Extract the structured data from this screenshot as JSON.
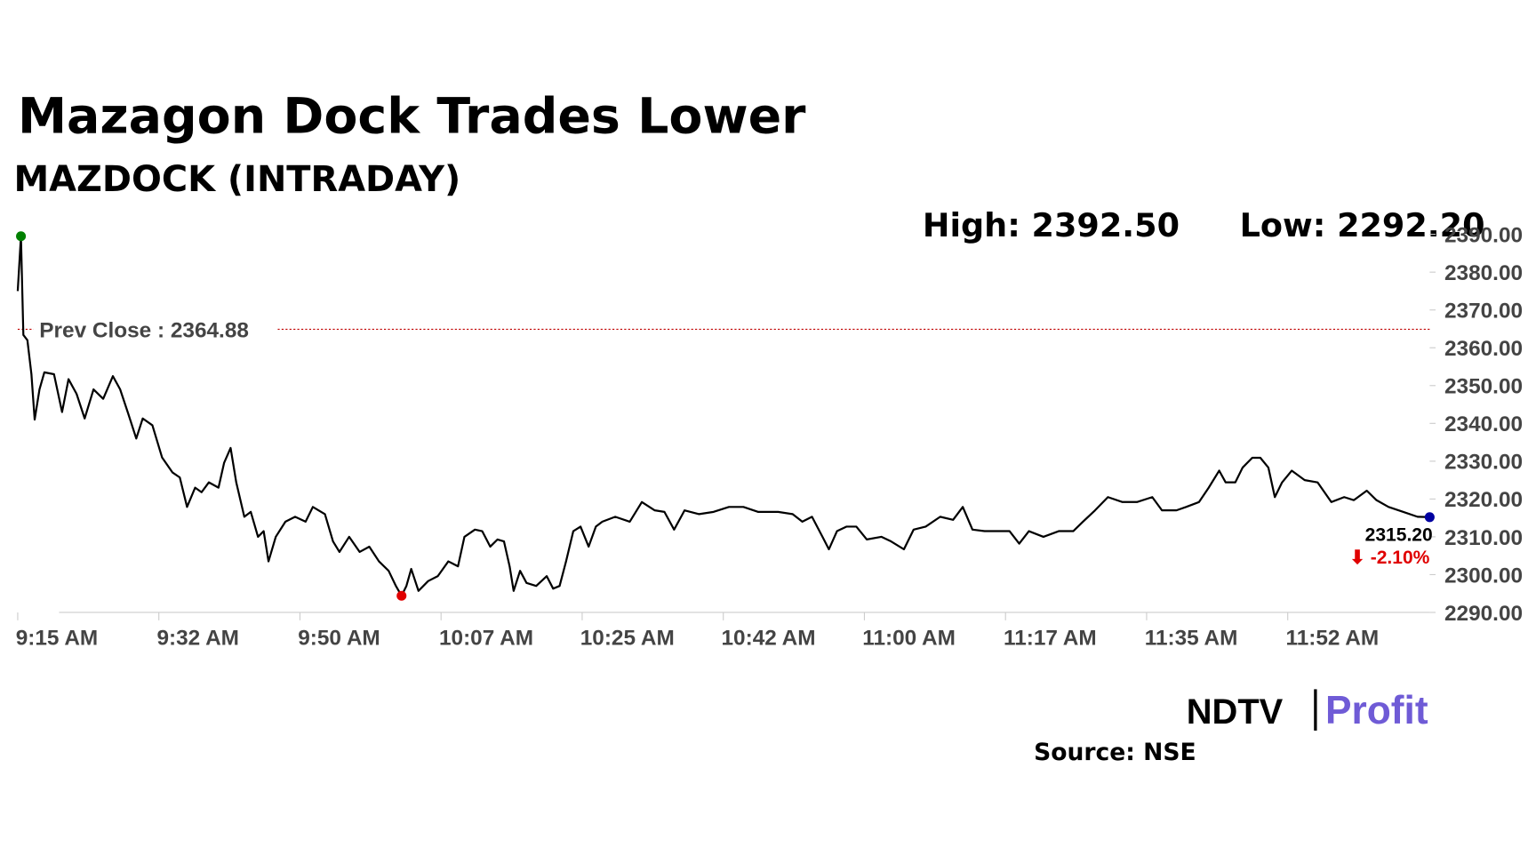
{
  "chart_data": {
    "type": "line",
    "title": "Mazagon Dock Trades Lower",
    "subtitle": "MAZDOCK (INTRADAY)",
    "high_label": "High: 2392.50",
    "low_label": "Low: 2292.20",
    "prev_close": {
      "value": 2364.88,
      "label": "Prev Close : 2364.88",
      "color": "#c00000"
    },
    "last_label": "2315.20",
    "change_label": "⬇ -2.10%",
    "source": "Source: NSE",
    "logo": {
      "left": "NDTV",
      "right": "Profit"
    },
    "x": [
      555,
      555.4,
      555.7,
      556.2,
      556.7,
      557.1,
      557.7,
      558.3,
      559.5,
      560.5,
      561.3,
      562.3,
      563.3,
      564.4,
      565.6,
      566.8,
      567.7,
      568.7,
      569.7,
      570.5,
      571.7,
      572.9,
      574.2,
      575.1,
      576,
      577,
      577.8,
      578.7,
      579.9,
      580.6,
      581.4,
      582.1,
      583.1,
      583.9,
      584.8,
      585.5,
      586.1,
      587,
      588.2,
      589.4,
      590.7,
      591.6,
      593.1,
      594.1,
      594.9,
      596.1,
      597.4,
      598.6,
      599.8,
      601,
      601.9,
      602.6,
      603.2,
      603.8,
      604.7,
      605.9,
      607.1,
      608.4,
      609.6,
      610.4,
      611.7,
      612.6,
      613.6,
      614.5,
      615.3,
      616,
      616.5,
      617.3,
      618.1,
      619.3,
      620.6,
      621.4,
      622.2,
      623,
      623.9,
      624.8,
      625.8,
      626.7,
      627.5,
      629.1,
      630.9,
      632.4,
      634,
      635.2,
      636.4,
      637.7,
      639.5,
      641.3,
      643.2,
      645,
      646.8,
      649.3,
      651.1,
      652.3,
      653.5,
      654.8,
      655.6,
      656.6,
      657.8,
      659,
      660.3,
      662.1,
      663.3,
      664.9,
      666.1,
      667.6,
      669.4,
      671,
      672.2,
      673.4,
      674.9,
      676.7,
      678,
      679.2,
      680.4,
      682.2,
      684.1,
      685.9,
      687.1,
      688.6,
      690.2,
      692,
      693.8,
      695.7,
      696.9,
      698.7,
      699.9,
      701.5,
      702.7,
      704,
      704.8,
      706,
      706.9,
      708.1,
      709.1,
      710.1,
      710.9,
      711.8,
      713,
      714.6,
      716.2,
      717.9,
      719.5,
      720.7,
      722.3,
      723.5,
      725,
      726.8,
      728.6,
      730.1
    ],
    "series": [
      {
        "name": "MAZDOCK",
        "color": "#000000",
        "values": [
          2375,
          2389.5,
          2363.4,
          2362,
          2353,
          2341,
          2349,
          2353.5,
          2353,
          2343,
          2351.7,
          2347.8,
          2341.3,
          2349,
          2346.5,
          2352.5,
          2349,
          2342.6,
          2336,
          2341.3,
          2339.5,
          2331,
          2327,
          2325.7,
          2317.9,
          2323,
          2321.8,
          2324.4,
          2323,
          2329.6,
          2333.5,
          2324.4,
          2315.3,
          2316.6,
          2310,
          2311.5,
          2303.5,
          2310,
          2314,
          2315.3,
          2314,
          2317.9,
          2316,
          2308.8,
          2306,
          2310,
          2306,
          2307.4,
          2303.5,
          2301,
          2297,
          2294.4,
          2297,
          2301.5,
          2295.7,
          2298.3,
          2299.6,
          2303.5,
          2302.2,
          2310,
          2311.9,
          2311.5,
          2307.4,
          2309.3,
          2308.8,
          2302.2,
          2295.7,
          2301,
          2297.8,
          2297,
          2299.6,
          2296.3,
          2297,
          2303.5,
          2311.5,
          2312.7,
          2307.4,
          2312.7,
          2314,
          2315.3,
          2314,
          2319.2,
          2317,
          2316.6,
          2311.9,
          2317,
          2316,
          2316.6,
          2317.9,
          2317.9,
          2316.6,
          2316.6,
          2316,
          2314,
          2315.3,
          2310,
          2306.7,
          2311.5,
          2312.7,
          2312.7,
          2309.3,
          2310,
          2308.8,
          2306.7,
          2311.9,
          2312.7,
          2315.3,
          2314.5,
          2317.9,
          2311.9,
          2311.5,
          2311.5,
          2311.5,
          2308.2,
          2311.5,
          2310,
          2311.5,
          2311.5,
          2314,
          2317,
          2320.5,
          2319.2,
          2319.2,
          2320.5,
          2317,
          2317,
          2317.9,
          2319.2,
          2323,
          2327.5,
          2324.4,
          2324.4,
          2328.3,
          2330.9,
          2330.9,
          2328.3,
          2320.5,
          2324.4,
          2327.5,
          2325,
          2324.4,
          2319.2,
          2320.5,
          2319.7,
          2322.2,
          2319.7,
          2317.9,
          2316.6,
          2315.3,
          2315.2
        ]
      }
    ],
    "xlim": [
      555,
      730.1
    ],
    "xticks": [
      {
        "value": 555,
        "label": "9:15 AM"
      },
      {
        "value": 572.5,
        "label": "9:32 AM"
      },
      {
        "value": 590,
        "label": "9:50 AM"
      },
      {
        "value": 607.5,
        "label": "10:07 AM"
      },
      {
        "value": 625,
        "label": "10:25 AM"
      },
      {
        "value": 642.5,
        "label": "10:42 AM"
      },
      {
        "value": 660,
        "label": "11:00 AM"
      },
      {
        "value": 677.5,
        "label": "11:17 AM"
      },
      {
        "value": 695,
        "label": "11:35 AM"
      },
      {
        "value": 712.5,
        "label": "11:52 AM"
      }
    ],
    "ylim": [
      2290,
      2390
    ],
    "yticks": [
      {
        "value": 2390,
        "label": "2390.00"
      },
      {
        "value": 2380,
        "label": "2380.00"
      },
      {
        "value": 2370,
        "label": "2370.00"
      },
      {
        "value": 2360,
        "label": "2360.00"
      },
      {
        "value": 2350,
        "label": "2350.00"
      },
      {
        "value": 2340,
        "label": "2340.00"
      },
      {
        "value": 2330,
        "label": "2330.00"
      },
      {
        "value": 2320,
        "label": "2320.00"
      },
      {
        "value": 2310,
        "label": "2310.00"
      },
      {
        "value": 2300,
        "label": "2300.00"
      },
      {
        "value": 2290,
        "label": "2290.00"
      }
    ],
    "high_color": "#008000",
    "low_color": "#e00000",
    "last_color": "#0000a0",
    "change_color": "#e00000"
  }
}
